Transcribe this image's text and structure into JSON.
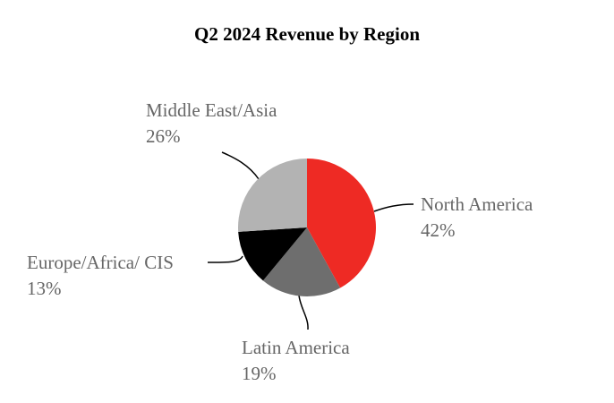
{
  "chart_data": {
    "type": "pie",
    "title": "Q2 2024 Revenue by Region",
    "categories": [
      "North America",
      "Latin America",
      "Europe/Africa/ CIS",
      "Middle East/Asia"
    ],
    "values": [
      42,
      19,
      13,
      26
    ],
    "value_labels": [
      "42%",
      "19%",
      "13%",
      "26%"
    ],
    "colors": [
      "#ee2a24",
      "#6e6e6e",
      "#000000",
      "#b3b3b3"
    ]
  }
}
